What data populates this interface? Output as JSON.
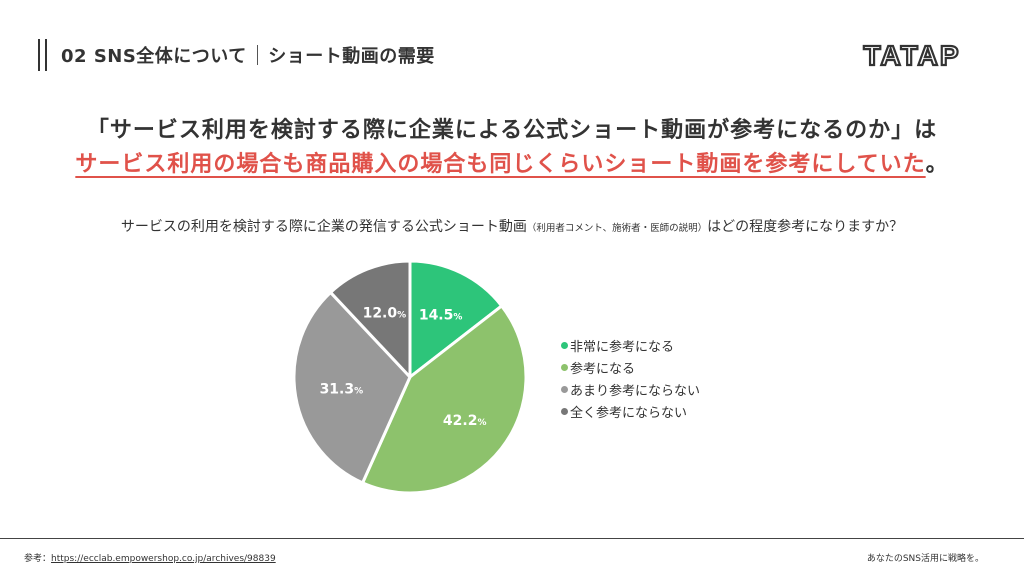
{
  "header": {
    "section": "02 SNS全体について",
    "topic": "ショート動画の需要"
  },
  "logo": {
    "text": "TATAP"
  },
  "headline": {
    "line1": "「サービス利用を検討する際に企業による公式ショート動画が参考になるのか」は",
    "line2_highlight": "サービス利用の場合も商品購入の場合も同じくらいショート動画を参考にしていた",
    "line2_tail": "。"
  },
  "question": {
    "main": "サービスの利用を検討する際に企業の発信する公式ショート動画",
    "note": "（利用者コメント、施術者・医師の説明）",
    "tail": "はどの程度参考になりますか？"
  },
  "chart_data": {
    "type": "pie",
    "slices": [
      {
        "label": "非常に参考になる",
        "value": 14.5,
        "display": "14.5",
        "color": "#2dc57a"
      },
      {
        "label": "参考になる",
        "value": 42.2,
        "display": "42.2",
        "color": "#8dc26c"
      },
      {
        "label": "あまり参考にならない",
        "value": 31.3,
        "display": "31.3",
        "color": "#999999"
      },
      {
        "label": "全く参考にならない",
        "value": 12.0,
        "display": "12.0",
        "color": "#777777"
      }
    ],
    "unit": "%",
    "legend_position": "right"
  },
  "footer": {
    "source_label": "参考：",
    "source_url": "https://ecclab.empowershop.co.jp/archives/98839",
    "tagline": "あなたのSNS活用に戦略を。"
  }
}
